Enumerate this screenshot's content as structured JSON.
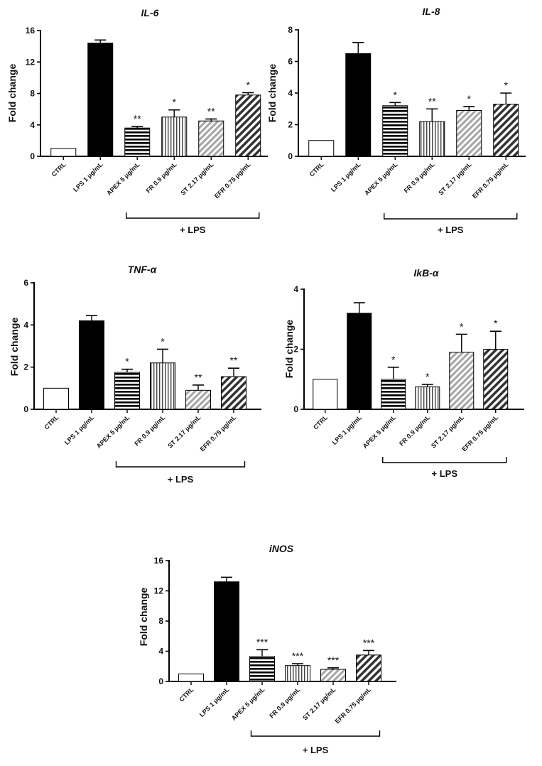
{
  "chart_data": [
    {
      "type": "bar",
      "title": "IL-6",
      "ylabel": "Fold change",
      "ylim": [
        0,
        16
      ],
      "yticks": [
        "0",
        "4",
        "8",
        "12",
        "16"
      ],
      "categories": [
        "CTRL",
        "LPS 1 μg/mL",
        "APEX 5 μg/mL",
        "FR 0.9 μg/mL",
        "ST 2.17 μg/mL",
        "EFR 0.75 μg/mL"
      ],
      "values": [
        1,
        14.4,
        3.6,
        5.0,
        4.5,
        7.8
      ],
      "errors": [
        0,
        0.4,
        0.2,
        0.9,
        0.25,
        0.3
      ],
      "significance": [
        "",
        "",
        "**",
        "*",
        "**",
        "*"
      ],
      "group_label": "+ LPS",
      "bar_patterns": [
        "empty",
        "solid",
        "horizontal",
        "vertical",
        "diagonal-light",
        "diagonal-dark"
      ]
    },
    {
      "type": "bar",
      "title": "IL-8",
      "ylabel": "Fold change",
      "ylim": [
        0,
        8
      ],
      "yticks": [
        "0",
        "2",
        "4",
        "6",
        "8"
      ],
      "categories": [
        "CTRL",
        "LPS 1 μg/mL",
        "APEX 5 μg/mL",
        "FR 0.9 μg/mL",
        "ST 2.17 μg/mL",
        "EFR 0.75 μg/mL"
      ],
      "values": [
        1,
        6.5,
        3.2,
        2.2,
        2.9,
        3.3
      ],
      "errors": [
        0,
        0.7,
        0.2,
        0.8,
        0.25,
        0.7
      ],
      "significance": [
        "",
        "",
        "*",
        "**",
        "*",
        "*"
      ],
      "group_label": "+ LPS",
      "bar_patterns": [
        "empty",
        "solid",
        "horizontal",
        "vertical",
        "diagonal-light",
        "diagonal-dark"
      ]
    },
    {
      "type": "bar",
      "title": "TNF-α",
      "ylabel": "Fold change",
      "ylim": [
        0,
        6
      ],
      "yticks": [
        "0",
        "2",
        "4",
        "6"
      ],
      "categories": [
        "CTRL",
        "LPS 1 μg/mL",
        "APEX 5 μg/mL",
        "FR 0.9 μg/mL",
        "ST 2.17 μg/mL",
        "EFR 0.75 μg/mL"
      ],
      "values": [
        1,
        4.2,
        1.75,
        2.2,
        0.9,
        1.55
      ],
      "errors": [
        0,
        0.25,
        0.15,
        0.65,
        0.25,
        0.4
      ],
      "significance": [
        "",
        "",
        "*",
        "*",
        "**",
        "**"
      ],
      "group_label": "+ LPS",
      "bar_patterns": [
        "empty",
        "solid",
        "horizontal",
        "vertical",
        "diagonal-light",
        "diagonal-dark"
      ]
    },
    {
      "type": "bar",
      "title": "IkB-α",
      "ylabel": "Fold change",
      "ylim": [
        0,
        4
      ],
      "yticks": [
        "0",
        "2",
        "4"
      ],
      "categories": [
        "CTRL",
        "LPS 1 μg/mL",
        "APEX 5 μg/mL",
        "FR 0.9 μg/mL",
        "ST 2.17 μg/mL",
        "EFR 0.75 μg/mL"
      ],
      "values": [
        1,
        3.2,
        1.0,
        0.75,
        1.9,
        2.0
      ],
      "errors": [
        0,
        0.35,
        0.4,
        0.08,
        0.6,
        0.6
      ],
      "significance": [
        "",
        "",
        "*",
        "*",
        "*",
        "*"
      ],
      "group_label": "+ LPS",
      "bar_patterns": [
        "empty",
        "solid",
        "horizontal",
        "vertical",
        "diagonal-light",
        "diagonal-dark"
      ]
    },
    {
      "type": "bar",
      "title": "iNOS",
      "ylabel": "Fold change",
      "ylim": [
        0,
        16
      ],
      "yticks": [
        "0",
        "4",
        "8",
        "12",
        "16"
      ],
      "categories": [
        "CTRL",
        "LPS 1 μg/mL",
        "APEX 5 μg/mL",
        "FR 0.9 μg/mL",
        "ST 2.17 μg/mL",
        "EFR 0.75 μg/mL"
      ],
      "values": [
        1,
        13.2,
        3.3,
        2.1,
        1.6,
        3.5
      ],
      "errors": [
        0,
        0.6,
        0.9,
        0.25,
        0.2,
        0.6
      ],
      "significance": [
        "",
        "",
        "***",
        "***",
        "***",
        "***"
      ],
      "group_label": "+ LPS",
      "bar_patterns": [
        "empty",
        "solid",
        "horizontal",
        "vertical",
        "diagonal-light",
        "diagonal-dark"
      ]
    }
  ]
}
